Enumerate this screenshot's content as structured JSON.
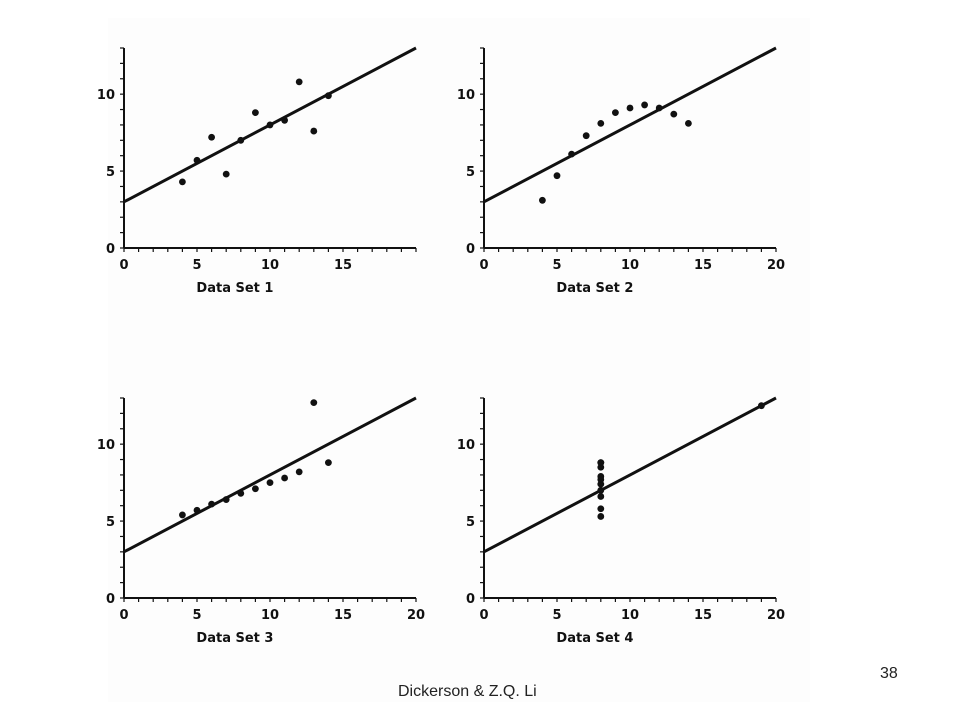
{
  "slide": {
    "footer_text": "Dickerson & Z.Q. Li",
    "page_number": "38"
  },
  "chart_data": [
    {
      "type": "scatter",
      "xlabel": "Data Set 1",
      "xlim": [
        0,
        20
      ],
      "ylim": [
        0,
        13
      ],
      "xticks": [
        0,
        5,
        10,
        15
      ],
      "yticks": [
        0,
        5,
        10
      ],
      "points": [
        [
          4,
          4.3
        ],
        [
          5,
          5.7
        ],
        [
          6,
          7.2
        ],
        [
          7,
          4.8
        ],
        [
          8,
          7.0
        ],
        [
          9,
          8.8
        ],
        [
          10,
          8.0
        ],
        [
          11,
          8.3
        ],
        [
          12,
          10.8
        ],
        [
          13,
          7.6
        ],
        [
          14,
          9.9
        ]
      ],
      "fit_line": {
        "intercept": 3.0,
        "slope": 0.5,
        "x_range": [
          0,
          20
        ]
      }
    },
    {
      "type": "scatter",
      "xlabel": "Data Set 2",
      "xlim": [
        0,
        20
      ],
      "ylim": [
        0,
        13
      ],
      "xticks": [
        0,
        5,
        10,
        15,
        20
      ],
      "yticks": [
        0,
        5,
        10
      ],
      "points": [
        [
          4,
          3.1
        ],
        [
          5,
          4.7
        ],
        [
          6,
          6.1
        ],
        [
          7,
          7.3
        ],
        [
          8,
          8.1
        ],
        [
          9,
          8.8
        ],
        [
          10,
          9.1
        ],
        [
          11,
          9.3
        ],
        [
          12,
          9.1
        ],
        [
          13,
          8.7
        ],
        [
          14,
          8.1
        ]
      ],
      "fit_line": {
        "intercept": 3.0,
        "slope": 0.5,
        "x_range": [
          0,
          20
        ]
      }
    },
    {
      "type": "scatter",
      "xlabel": "Data Set 3",
      "xlim": [
        0,
        20
      ],
      "ylim": [
        0,
        13
      ],
      "xticks": [
        0,
        5,
        10,
        15,
        20
      ],
      "yticks": [
        0,
        5,
        10
      ],
      "points": [
        [
          4,
          5.4
        ],
        [
          5,
          5.7
        ],
        [
          6,
          6.1
        ],
        [
          7,
          6.4
        ],
        [
          8,
          6.8
        ],
        [
          9,
          7.1
        ],
        [
          10,
          7.5
        ],
        [
          11,
          7.8
        ],
        [
          12,
          8.2
        ],
        [
          13,
          12.7
        ],
        [
          14,
          8.8
        ]
      ],
      "fit_line": {
        "intercept": 3.0,
        "slope": 0.5,
        "x_range": [
          0,
          20
        ]
      }
    },
    {
      "type": "scatter",
      "xlabel": "Data Set 4",
      "xlim": [
        0,
        20
      ],
      "ylim": [
        0,
        13
      ],
      "xticks": [
        0,
        5,
        10,
        15,
        20
      ],
      "yticks": [
        0,
        5,
        10
      ],
      "points": [
        [
          8,
          5.3
        ],
        [
          8,
          5.8
        ],
        [
          8,
          6.6
        ],
        [
          8,
          7.0
        ],
        [
          8,
          7.4
        ],
        [
          8,
          7.7
        ],
        [
          8,
          7.9
        ],
        [
          8,
          8.5
        ],
        [
          8,
          8.8
        ],
        [
          8,
          8.8
        ],
        [
          19,
          12.5
        ]
      ],
      "fit_line": {
        "intercept": 3.0,
        "slope": 0.5,
        "x_range": [
          0,
          20
        ]
      }
    }
  ]
}
